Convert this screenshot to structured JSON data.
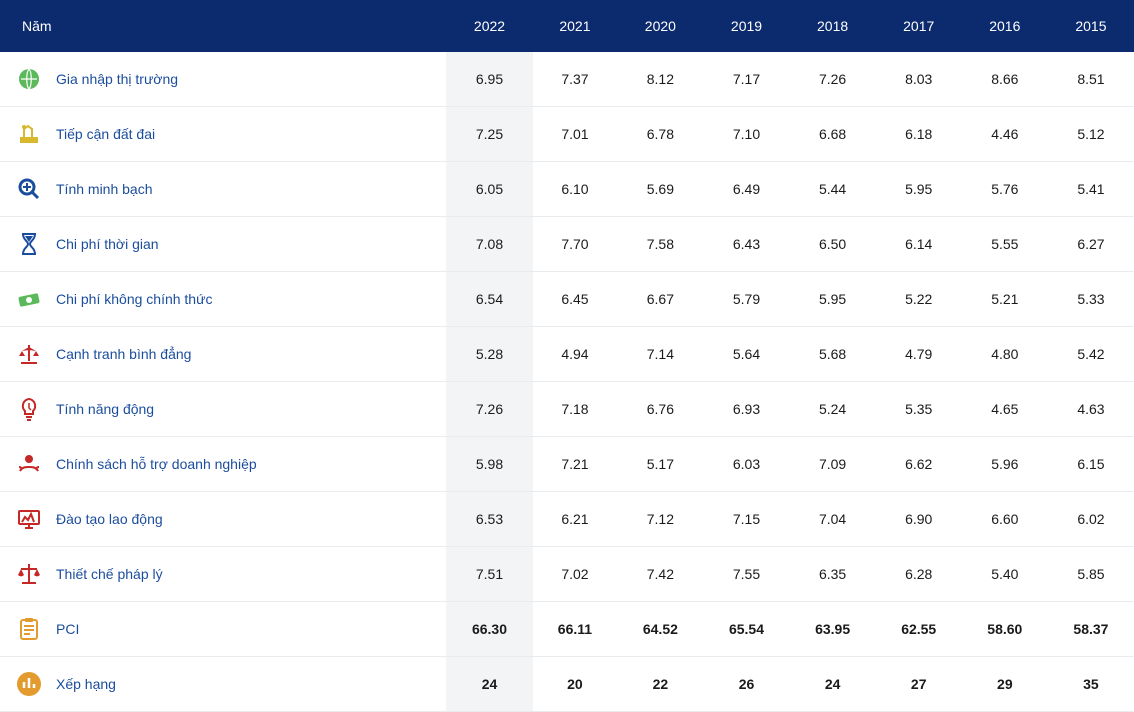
{
  "table": {
    "header_bg": "#0c2a6e",
    "header_fg": "#ffffff",
    "row_border": "#e9ecef",
    "highlight_bg": "#f3f4f6",
    "label_color": "#1b4d9e",
    "year_label": "Năm",
    "years": [
      "2022",
      "2021",
      "2020",
      "2019",
      "2018",
      "2017",
      "2016",
      "2015"
    ],
    "icon_colors": {
      "green": "#5bb95b",
      "yellow": "#d8b92e",
      "blue": "#1b4d9e",
      "red": "#c62828",
      "orange": "#e39b2d"
    },
    "rows": [
      {
        "icon": "market-entry-icon",
        "icon_color": "green",
        "label": "Gia nhập thị trường",
        "values": [
          "6.95",
          "7.37",
          "8.12",
          "7.17",
          "7.26",
          "8.03",
          "8.66",
          "8.51"
        ],
        "bold": false
      },
      {
        "icon": "land-access-icon",
        "icon_color": "yellow",
        "label": "Tiếp cận đất đai",
        "values": [
          "7.25",
          "7.01",
          "6.78",
          "7.10",
          "6.68",
          "6.18",
          "4.46",
          "5.12"
        ],
        "bold": false
      },
      {
        "icon": "transparency-icon",
        "icon_color": "blue",
        "label": "Tính minh bạch",
        "values": [
          "6.05",
          "6.10",
          "5.69",
          "6.49",
          "5.44",
          "5.95",
          "5.76",
          "5.41"
        ],
        "bold": false
      },
      {
        "icon": "time-cost-icon",
        "icon_color": "blue",
        "label": "Chi phí thời gian",
        "values": [
          "7.08",
          "7.70",
          "7.58",
          "6.43",
          "6.50",
          "6.14",
          "5.55",
          "6.27"
        ],
        "bold": false
      },
      {
        "icon": "informal-cost-icon",
        "icon_color": "green",
        "label": "Chi phí không chính thức",
        "values": [
          "6.54",
          "6.45",
          "6.67",
          "5.79",
          "5.95",
          "5.22",
          "5.21",
          "5.33"
        ],
        "bold": false
      },
      {
        "icon": "fair-compete-icon",
        "icon_color": "red",
        "label": "Cạnh tranh bình đẳng",
        "values": [
          "5.28",
          "4.94",
          "7.14",
          "5.64",
          "5.68",
          "4.79",
          "4.80",
          "5.42"
        ],
        "bold": false
      },
      {
        "icon": "dynamism-icon",
        "icon_color": "red",
        "label": "Tính năng động",
        "values": [
          "7.26",
          "7.18",
          "6.76",
          "6.93",
          "5.24",
          "5.35",
          "4.65",
          "4.63"
        ],
        "bold": false
      },
      {
        "icon": "biz-support-icon",
        "icon_color": "red",
        "label": "Chính sách hỗ trợ doanh nghiệp",
        "values": [
          "5.98",
          "7.21",
          "5.17",
          "6.03",
          "7.09",
          "6.62",
          "5.96",
          "6.15"
        ],
        "bold": false
      },
      {
        "icon": "labor-training-icon",
        "icon_color": "red",
        "label": "Đào tạo lao động",
        "values": [
          "6.53",
          "6.21",
          "7.12",
          "7.15",
          "7.04",
          "6.90",
          "6.60",
          "6.02"
        ],
        "bold": false
      },
      {
        "icon": "legal-icon",
        "icon_color": "red",
        "label": "Thiết chế pháp lý",
        "values": [
          "7.51",
          "7.02",
          "7.42",
          "7.55",
          "6.35",
          "6.28",
          "5.40",
          "5.85"
        ],
        "bold": false
      },
      {
        "icon": "pci-icon",
        "icon_color": "orange",
        "label": "PCI",
        "values": [
          "66.30",
          "66.11",
          "64.52",
          "65.54",
          "63.95",
          "62.55",
          "58.60",
          "58.37"
        ],
        "bold": true
      },
      {
        "icon": "rank-icon",
        "icon_color": "orange",
        "label": "Xếp hạng",
        "values": [
          "24",
          "20",
          "22",
          "26",
          "24",
          "27",
          "29",
          "35"
        ],
        "bold": true
      }
    ]
  }
}
